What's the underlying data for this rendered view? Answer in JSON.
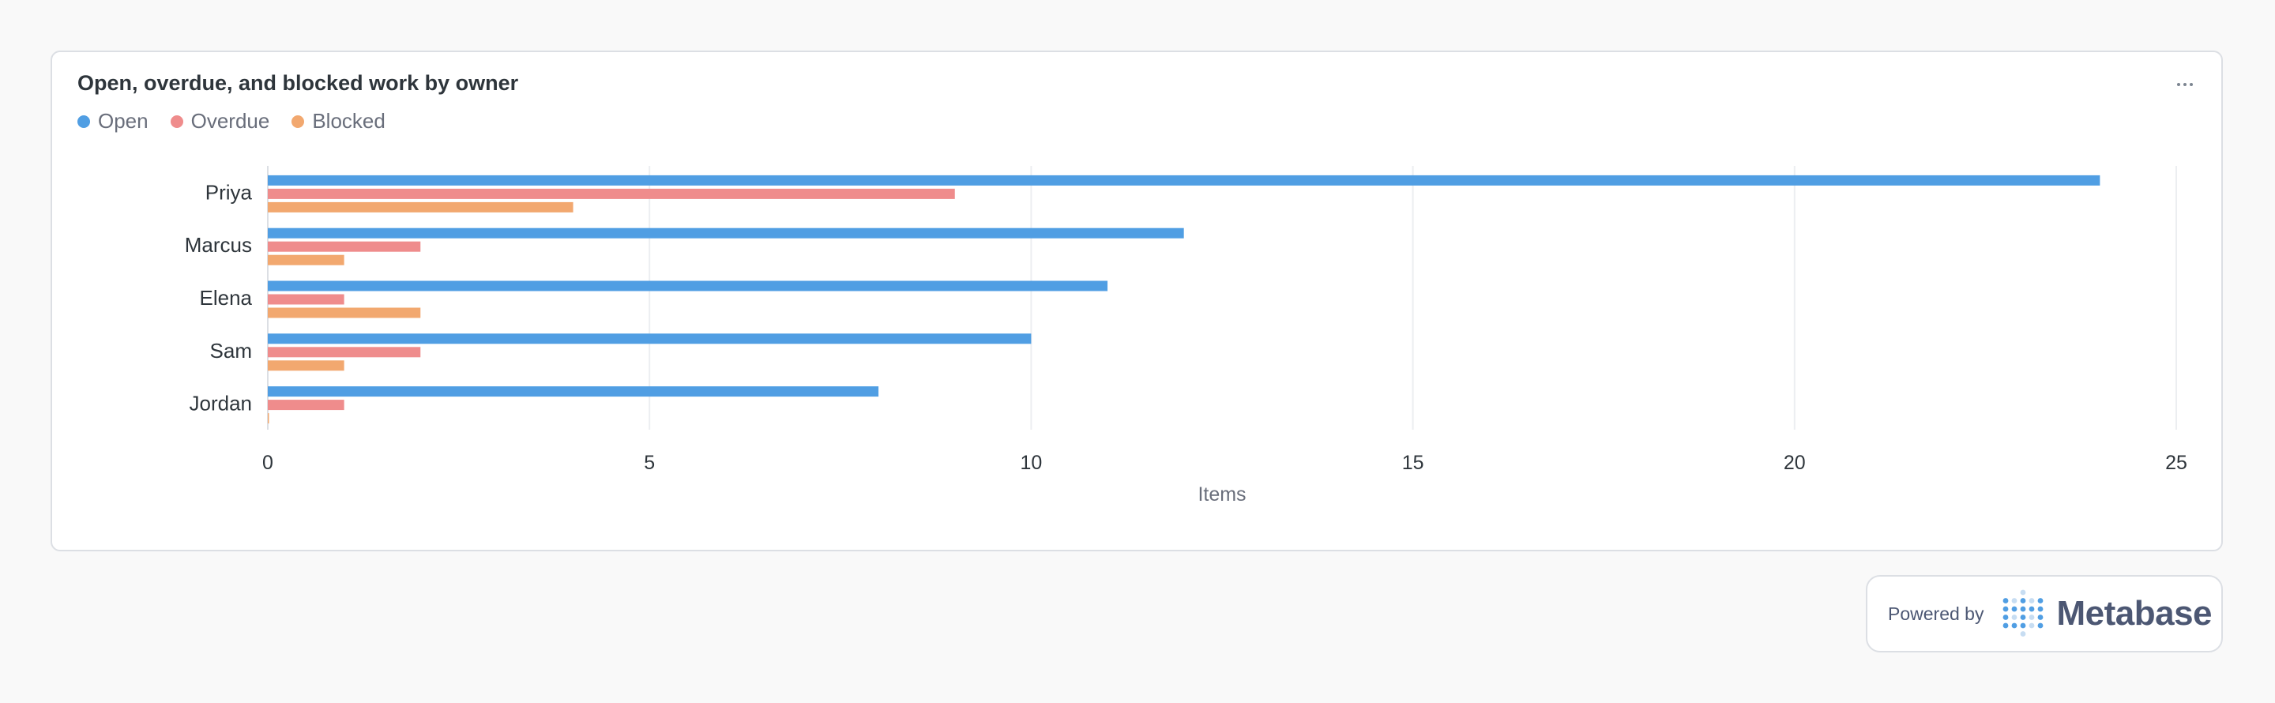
{
  "card": {
    "title": "Open, overdue, and blocked work by owner",
    "menu_icon": "ellipsis-icon"
  },
  "powered_by": {
    "label": "Powered by",
    "brand": "Metabase",
    "logo_icon": "metabase-logo-icon"
  },
  "chart_data": {
    "type": "bar",
    "orientation": "horizontal",
    "categories": [
      "Priya",
      "Marcus",
      "Elena",
      "Sam",
      "Jordan"
    ],
    "series": [
      {
        "name": "Open",
        "color": "#509ee3",
        "values": [
          24,
          12,
          11,
          10,
          8
        ]
      },
      {
        "name": "Overdue",
        "color": "#ef8c8c",
        "values": [
          9,
          2,
          1,
          2,
          1
        ]
      },
      {
        "name": "Blocked",
        "color": "#f2a86f",
        "values": [
          4,
          1,
          2,
          1,
          0
        ]
      }
    ],
    "xlabel": "Items",
    "ylabel": "",
    "xlim": [
      0,
      25
    ],
    "xticks": [
      0,
      5,
      10,
      15,
      20,
      25
    ],
    "xtick_labels": [
      "0",
      "5",
      "10",
      "15",
      "20",
      "25"
    ],
    "grid": true,
    "legend_position": "top-left"
  }
}
